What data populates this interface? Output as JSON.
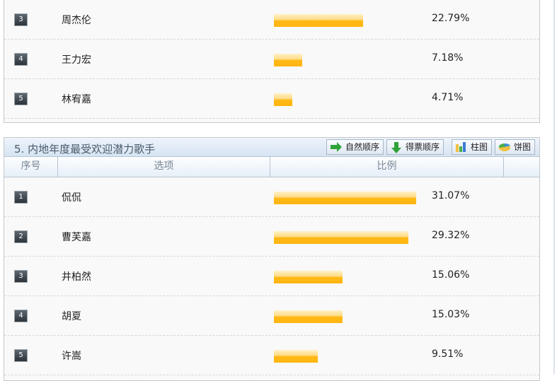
{
  "section1": {
    "rows": [
      {
        "num": "3",
        "option": "周杰伦",
        "percent": "22.79%",
        "value": 22.79
      },
      {
        "num": "4",
        "option": "王力宏",
        "percent": "7.18%",
        "value": 7.18
      },
      {
        "num": "5",
        "option": "林宥嘉",
        "percent": "4.71%",
        "value": 4.71
      }
    ]
  },
  "section2": {
    "title": "5. 内地年度最受欢迎潜力歌手",
    "buttons": {
      "natural_order": "自然顺序",
      "vote_order": "得票顺序",
      "bar_chart": "柱图",
      "pie_chart": "饼图"
    },
    "columns": {
      "index": "序号",
      "option": "选项",
      "ratio": "比例"
    },
    "rows": [
      {
        "num": "1",
        "option": "侃侃",
        "percent": "31.07%",
        "value": 31.07
      },
      {
        "num": "2",
        "option": "曹芙嘉",
        "percent": "29.32%",
        "value": 29.32
      },
      {
        "num": "3",
        "option": "井柏然",
        "percent": "15.06%",
        "value": 15.06
      },
      {
        "num": "4",
        "option": "胡夏",
        "percent": "15.03%",
        "value": 15.03
      },
      {
        "num": "5",
        "option": "许嵩",
        "percent": "9.51%",
        "value": 9.51
      }
    ]
  },
  "colors": {
    "bar": "#ffb510",
    "header": "#d6e4f3"
  }
}
